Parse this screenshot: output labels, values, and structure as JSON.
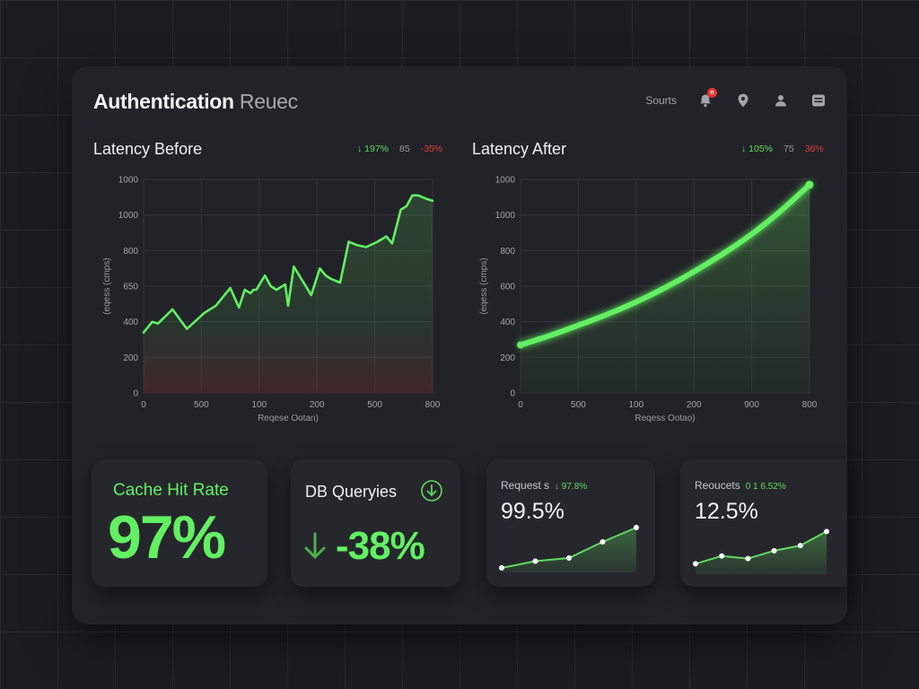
{
  "header": {
    "title": "Authentication",
    "title_suffix": "Reuec",
    "link_label": "Sourts",
    "notification_count": "n"
  },
  "icons": [
    "bell-icon",
    "location-pin-icon",
    "user-icon",
    "layout-icon",
    "arrow-down-circle-icon",
    "arrow-down-icon"
  ],
  "colors": {
    "accent": "#5fdc5f",
    "negative": "#e0413b",
    "panel": "#222328",
    "background": "#1c1d22"
  },
  "charts": {
    "before": {
      "title": "Latency Before",
      "stat_up": "↓ 197%",
      "stat_mid": "85",
      "stat_down": "-35%",
      "ylabel": "(eqess (cmps)",
      "xlabel": "Reqese Ootan)"
    },
    "after": {
      "title": "Latency After",
      "stat_up": "↓ 105%",
      "stat_mid": "75",
      "stat_down": "36%",
      "ylabel": "(eqess (cmps)",
      "xlabel": "Reqess Ootao)"
    }
  },
  "chart_data": [
    {
      "type": "line",
      "title": "Latency Before",
      "ylabel": "(eqess (cmps)",
      "xlabel": "Reqese Ootan)",
      "y_ticks": [
        "0",
        "200",
        "400",
        "650",
        "800",
        "1000",
        "1000"
      ],
      "x_ticks": [
        "0",
        "500",
        "100",
        "200",
        "500",
        "800"
      ],
      "ylim": [
        0,
        1200
      ],
      "grid": true,
      "x": [
        0.0,
        0.03,
        0.05,
        0.1,
        0.15,
        0.21,
        0.25,
        0.3,
        0.33,
        0.35,
        0.37,
        0.38,
        0.39,
        0.42,
        0.44,
        0.46,
        0.49,
        0.5,
        0.52,
        0.55,
        0.58,
        0.61,
        0.63,
        0.65,
        0.68,
        0.71,
        0.74,
        0.77,
        0.81,
        0.84,
        0.86,
        0.89,
        0.91,
        0.93,
        0.95,
        0.98,
        1.0
      ],
      "values": [
        340,
        400,
        390,
        470,
        360,
        450,
        490,
        590,
        480,
        580,
        560,
        580,
        580,
        660,
        600,
        580,
        610,
        490,
        710,
        630,
        550,
        700,
        660,
        640,
        620,
        850,
        830,
        820,
        850,
        880,
        840,
        1030,
        1050,
        1110,
        1110,
        1090,
        1080
      ],
      "series": [
        {
          "name": "",
          "values_ref": "values"
        }
      ]
    },
    {
      "type": "line",
      "title": "Latency After",
      "ylabel": "(eqess (cmps)",
      "xlabel": "Reqess Ootao)",
      "y_ticks": [
        "0",
        "200",
        "400",
        "600",
        "800",
        "1000",
        "1000"
      ],
      "x_ticks": [
        "0",
        "500",
        "100",
        "200",
        "900",
        "800"
      ],
      "ylim": [
        0,
        1200
      ],
      "grid": true,
      "x": [
        0.0,
        0.1,
        0.2,
        0.3,
        0.4,
        0.5,
        0.6,
        0.7,
        0.8,
        0.9,
        1.0
      ],
      "values": [
        270,
        320,
        380,
        440,
        510,
        590,
        680,
        780,
        890,
        1020,
        1170
      ]
    }
  ],
  "cards": {
    "cache": {
      "label": "Cache Hit Rate",
      "value": "97%"
    },
    "db": {
      "label": "DB Queryies",
      "value": "-38%"
    },
    "requests1": {
      "label": "Request s",
      "change": "↓ 97.8%",
      "value": "99.5%",
      "spark": [
        0.1,
        0.25,
        0.32,
        0.68,
        1.0
      ]
    },
    "requests2": {
      "label": "Reoucets",
      "change": "0 1 6.52%",
      "value": "12.5%",
      "spark": [
        0.2,
        0.35,
        0.3,
        0.45,
        0.55,
        0.82
      ]
    }
  }
}
